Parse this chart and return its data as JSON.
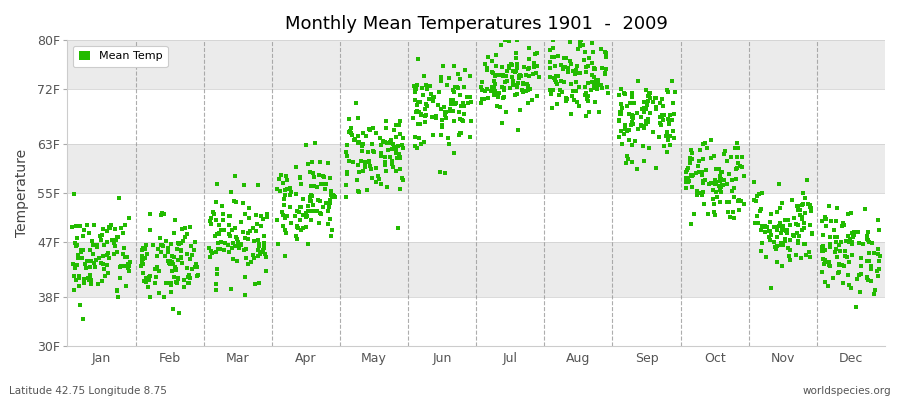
{
  "title": "Monthly Mean Temperatures 1901  -  2009",
  "ylabel": "Temperature",
  "ytick_labels": [
    "30F",
    "38F",
    "47F",
    "55F",
    "63F",
    "72F",
    "80F"
  ],
  "ytick_values": [
    30,
    38,
    47,
    55,
    63,
    72,
    80
  ],
  "ylim": [
    30,
    80
  ],
  "months": [
    "Jan",
    "Feb",
    "Mar",
    "Apr",
    "May",
    "Jun",
    "Jul",
    "Aug",
    "Sep",
    "Oct",
    "Nov",
    "Dec"
  ],
  "dot_color": "#22bb00",
  "bg_color": "#ffffff",
  "band_colors": [
    "#ffffff",
    "#ebebeb"
  ],
  "footer_left": "Latitude 42.75 Longitude 8.75",
  "footer_right": "worldspecies.org",
  "legend_label": "Mean Temp",
  "monthly_means": [
    44.5,
    43.5,
    48.0,
    54.0,
    61.5,
    68.5,
    74.0,
    73.5,
    67.0,
    57.5,
    49.5,
    45.5
  ],
  "monthly_stds": [
    3.8,
    3.8,
    3.5,
    3.5,
    3.5,
    3.5,
    3.0,
    3.0,
    3.5,
    3.5,
    3.5,
    3.5
  ],
  "n_years": 109,
  "seed": 42,
  "dashed_line_color": "#999999"
}
